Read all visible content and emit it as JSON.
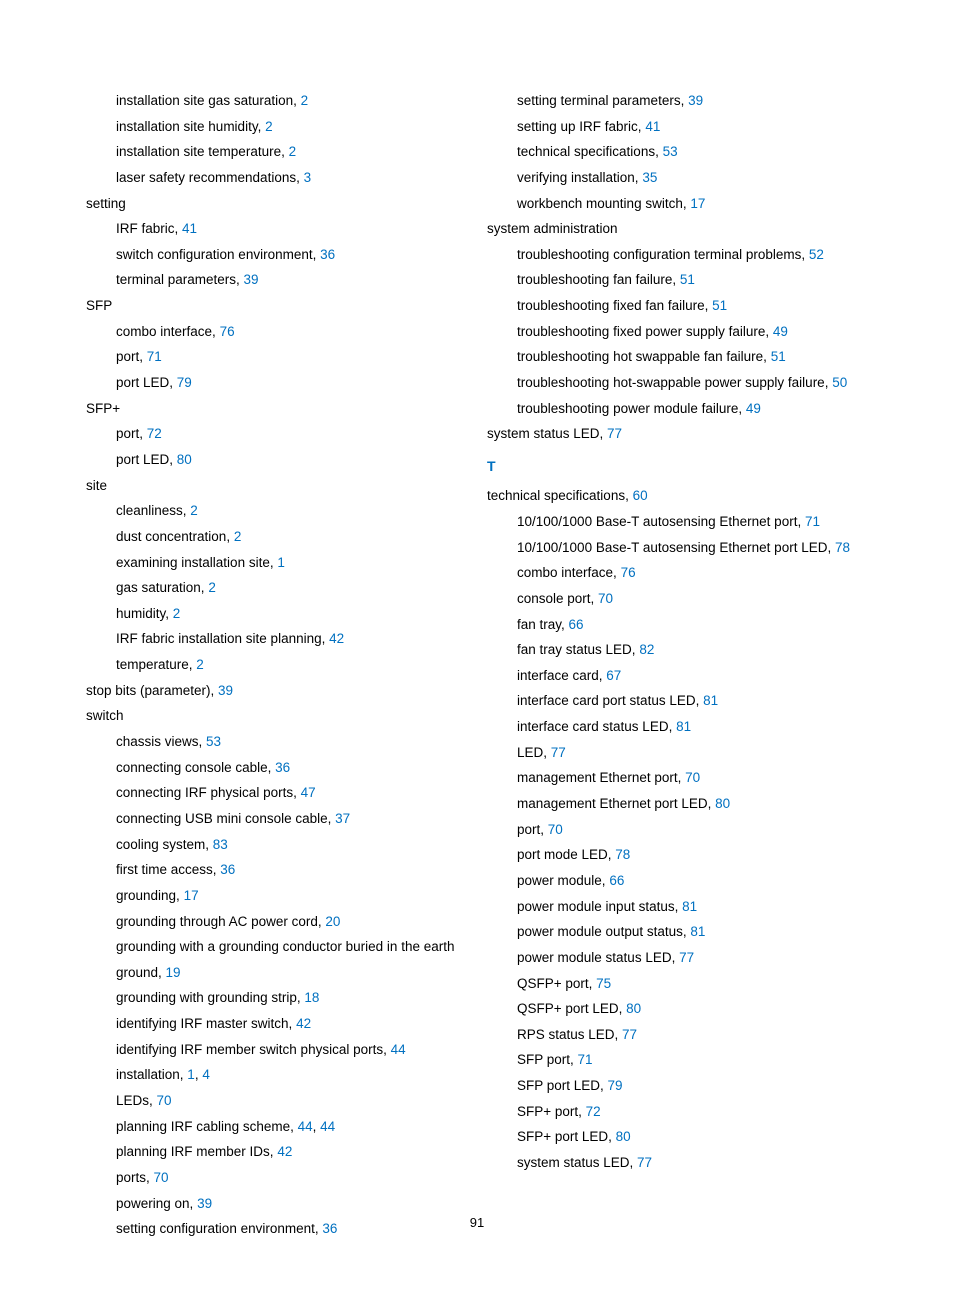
{
  "page_number": "91",
  "text_color": "#000000",
  "link_color": "#0070c0",
  "background_color": "#ffffff",
  "font_size": 13.5,
  "line_height": 1.9,
  "columns": {
    "left": [
      {
        "type": "entry",
        "level": 1,
        "text": "installation site gas saturation, ",
        "refs": [
          "2"
        ]
      },
      {
        "type": "entry",
        "level": 1,
        "text": "installation site humidity, ",
        "refs": [
          "2"
        ]
      },
      {
        "type": "entry",
        "level": 1,
        "text": "installation site temperature, ",
        "refs": [
          "2"
        ]
      },
      {
        "type": "entry",
        "level": 1,
        "text": "laser safety recommendations, ",
        "refs": [
          "3"
        ]
      },
      {
        "type": "entry",
        "level": 0,
        "text": "setting",
        "refs": []
      },
      {
        "type": "entry",
        "level": 1,
        "text": "IRF fabric, ",
        "refs": [
          "41"
        ]
      },
      {
        "type": "entry",
        "level": 1,
        "text": "switch configuration environment, ",
        "refs": [
          "36"
        ]
      },
      {
        "type": "entry",
        "level": 1,
        "text": "terminal parameters, ",
        "refs": [
          "39"
        ]
      },
      {
        "type": "entry",
        "level": 0,
        "text": "SFP",
        "refs": []
      },
      {
        "type": "entry",
        "level": 1,
        "text": "combo interface, ",
        "refs": [
          "76"
        ]
      },
      {
        "type": "entry",
        "level": 1,
        "text": "port, ",
        "refs": [
          "71"
        ]
      },
      {
        "type": "entry",
        "level": 1,
        "text": "port LED, ",
        "refs": [
          "79"
        ]
      },
      {
        "type": "entry",
        "level": 0,
        "text": "SFP+",
        "refs": []
      },
      {
        "type": "entry",
        "level": 1,
        "text": "port, ",
        "refs": [
          "72"
        ]
      },
      {
        "type": "entry",
        "level": 1,
        "text": "port LED, ",
        "refs": [
          "80"
        ]
      },
      {
        "type": "entry",
        "level": 0,
        "text": "site",
        "refs": []
      },
      {
        "type": "entry",
        "level": 1,
        "text": "cleanliness, ",
        "refs": [
          "2"
        ]
      },
      {
        "type": "entry",
        "level": 1,
        "text": "dust concentration, ",
        "refs": [
          "2"
        ]
      },
      {
        "type": "entry",
        "level": 1,
        "text": "examining installation site, ",
        "refs": [
          "1"
        ]
      },
      {
        "type": "entry",
        "level": 1,
        "text": "gas saturation, ",
        "refs": [
          "2"
        ]
      },
      {
        "type": "entry",
        "level": 1,
        "text": "humidity, ",
        "refs": [
          "2"
        ]
      },
      {
        "type": "entry",
        "level": 1,
        "text": "IRF fabric installation site planning, ",
        "refs": [
          "42"
        ]
      },
      {
        "type": "entry",
        "level": 1,
        "text": "temperature, ",
        "refs": [
          "2"
        ]
      },
      {
        "type": "entry",
        "level": 0,
        "text": "stop bits (parameter), ",
        "refs": [
          "39"
        ]
      },
      {
        "type": "entry",
        "level": 0,
        "text": "switch",
        "refs": []
      },
      {
        "type": "entry",
        "level": 1,
        "text": "chassis views, ",
        "refs": [
          "53"
        ]
      },
      {
        "type": "entry",
        "level": 1,
        "text": "connecting console cable, ",
        "refs": [
          "36"
        ]
      },
      {
        "type": "entry",
        "level": 1,
        "text": "connecting IRF physical ports, ",
        "refs": [
          "47"
        ]
      },
      {
        "type": "entry",
        "level": 1,
        "text": "connecting USB mini console cable, ",
        "refs": [
          "37"
        ]
      },
      {
        "type": "entry",
        "level": 1,
        "text": "cooling system, ",
        "refs": [
          "83"
        ]
      },
      {
        "type": "entry",
        "level": 1,
        "text": "first time access, ",
        "refs": [
          "36"
        ]
      },
      {
        "type": "entry",
        "level": 1,
        "text": "grounding, ",
        "refs": [
          "17"
        ]
      },
      {
        "type": "entry",
        "level": 1,
        "text": "grounding through AC power cord, ",
        "refs": [
          "20"
        ]
      },
      {
        "type": "entry",
        "level": 1,
        "text": "grounding with a grounding conductor buried in the earth ground, ",
        "refs": [
          "19"
        ]
      },
      {
        "type": "entry",
        "level": 1,
        "text": "grounding with grounding strip, ",
        "refs": [
          "18"
        ]
      },
      {
        "type": "entry",
        "level": 1,
        "text": "identifying IRF master switch, ",
        "refs": [
          "42"
        ]
      },
      {
        "type": "entry",
        "level": 1,
        "text": "identifying IRF member switch physical ports, ",
        "refs": [
          "44"
        ]
      },
      {
        "type": "entry",
        "level": 1,
        "text": "installation, ",
        "refs": [
          "1",
          "4"
        ]
      },
      {
        "type": "entry",
        "level": 1,
        "text": "LEDs, ",
        "refs": [
          "70"
        ]
      },
      {
        "type": "entry",
        "level": 1,
        "text": "planning IRF cabling scheme, ",
        "refs": [
          "44",
          "44"
        ]
      },
      {
        "type": "entry",
        "level": 1,
        "text": "planning IRF member IDs, ",
        "refs": [
          "42"
        ]
      },
      {
        "type": "entry",
        "level": 1,
        "text": "ports, ",
        "refs": [
          "70"
        ]
      },
      {
        "type": "entry",
        "level": 1,
        "text": "powering on, ",
        "refs": [
          "39"
        ]
      },
      {
        "type": "entry",
        "level": 1,
        "text": "setting configuration environment, ",
        "refs": [
          "36"
        ]
      }
    ],
    "right": [
      {
        "type": "entry",
        "level": 1,
        "text": "setting terminal parameters, ",
        "refs": [
          "39"
        ]
      },
      {
        "type": "entry",
        "level": 1,
        "text": "setting up IRF fabric, ",
        "refs": [
          "41"
        ]
      },
      {
        "type": "entry",
        "level": 1,
        "text": "technical specifications, ",
        "refs": [
          "53"
        ]
      },
      {
        "type": "entry",
        "level": 1,
        "text": "verifying installation, ",
        "refs": [
          "35"
        ]
      },
      {
        "type": "entry",
        "level": 1,
        "text": "workbench mounting switch, ",
        "refs": [
          "17"
        ]
      },
      {
        "type": "entry",
        "level": 0,
        "text": "system administration",
        "refs": []
      },
      {
        "type": "entry",
        "level": 1,
        "text": "troubleshooting configuration terminal problems, ",
        "refs": [
          "52"
        ]
      },
      {
        "type": "entry",
        "level": 1,
        "text": "troubleshooting fan failure, ",
        "refs": [
          "51"
        ]
      },
      {
        "type": "entry",
        "level": 1,
        "text": "troubleshooting fixed fan failure, ",
        "refs": [
          "51"
        ]
      },
      {
        "type": "entry",
        "level": 1,
        "text": "troubleshooting fixed power supply failure, ",
        "refs": [
          "49"
        ]
      },
      {
        "type": "entry",
        "level": 1,
        "text": "troubleshooting hot swappable fan failure, ",
        "refs": [
          "51"
        ]
      },
      {
        "type": "entry",
        "level": 1,
        "text": "troubleshooting hot-swappable power supply failure, ",
        "refs": [
          "50"
        ]
      },
      {
        "type": "entry",
        "level": 1,
        "text": "troubleshooting power module failure, ",
        "refs": [
          "49"
        ]
      },
      {
        "type": "entry",
        "level": 0,
        "text": "system status LED, ",
        "refs": [
          "77"
        ]
      },
      {
        "type": "letter",
        "text": "T"
      },
      {
        "type": "entry",
        "level": 0,
        "text": "technical specifications, ",
        "refs": [
          "60"
        ]
      },
      {
        "type": "entry",
        "level": 1,
        "text": "10/100/1000 Base-T autosensing Ethernet port, ",
        "refs": [
          "71"
        ]
      },
      {
        "type": "entry",
        "level": 1,
        "text": "10/100/1000 Base-T autosensing Ethernet port LED, ",
        "refs": [
          "78"
        ]
      },
      {
        "type": "entry",
        "level": 1,
        "text": "combo interface, ",
        "refs": [
          "76"
        ]
      },
      {
        "type": "entry",
        "level": 1,
        "text": "console port, ",
        "refs": [
          "70"
        ]
      },
      {
        "type": "entry",
        "level": 1,
        "text": "fan tray, ",
        "refs": [
          "66"
        ]
      },
      {
        "type": "entry",
        "level": 1,
        "text": "fan tray status LED, ",
        "refs": [
          "82"
        ]
      },
      {
        "type": "entry",
        "level": 1,
        "text": "interface card, ",
        "refs": [
          "67"
        ]
      },
      {
        "type": "entry",
        "level": 1,
        "text": "interface card port status LED, ",
        "refs": [
          "81"
        ]
      },
      {
        "type": "entry",
        "level": 1,
        "text": "interface card status LED, ",
        "refs": [
          "81"
        ]
      },
      {
        "type": "entry",
        "level": 1,
        "text": "LED, ",
        "refs": [
          "77"
        ]
      },
      {
        "type": "entry",
        "level": 1,
        "text": "management Ethernet port, ",
        "refs": [
          "70"
        ]
      },
      {
        "type": "entry",
        "level": 1,
        "text": "management Ethernet port LED, ",
        "refs": [
          "80"
        ]
      },
      {
        "type": "entry",
        "level": 1,
        "text": "port, ",
        "refs": [
          "70"
        ]
      },
      {
        "type": "entry",
        "level": 1,
        "text": "port mode LED, ",
        "refs": [
          "78"
        ]
      },
      {
        "type": "entry",
        "level": 1,
        "text": "power module, ",
        "refs": [
          "66"
        ]
      },
      {
        "type": "entry",
        "level": 1,
        "text": "power module input status, ",
        "refs": [
          "81"
        ]
      },
      {
        "type": "entry",
        "level": 1,
        "text": "power module output status, ",
        "refs": [
          "81"
        ]
      },
      {
        "type": "entry",
        "level": 1,
        "text": "power module status LED, ",
        "refs": [
          "77"
        ]
      },
      {
        "type": "entry",
        "level": 1,
        "text": "QSFP+ port, ",
        "refs": [
          "75"
        ]
      },
      {
        "type": "entry",
        "level": 1,
        "text": "QSFP+ port LED, ",
        "refs": [
          "80"
        ]
      },
      {
        "type": "entry",
        "level": 1,
        "text": "RPS status LED, ",
        "refs": [
          "77"
        ]
      },
      {
        "type": "entry",
        "level": 1,
        "text": "SFP port, ",
        "refs": [
          "71"
        ]
      },
      {
        "type": "entry",
        "level": 1,
        "text": "SFP port LED, ",
        "refs": [
          "79"
        ]
      },
      {
        "type": "entry",
        "level": 1,
        "text": "SFP+ port, ",
        "refs": [
          "72"
        ]
      },
      {
        "type": "entry",
        "level": 1,
        "text": "SFP+ port LED, ",
        "refs": [
          "80"
        ]
      },
      {
        "type": "entry",
        "level": 1,
        "text": "system status LED, ",
        "refs": [
          "77"
        ]
      }
    ]
  }
}
